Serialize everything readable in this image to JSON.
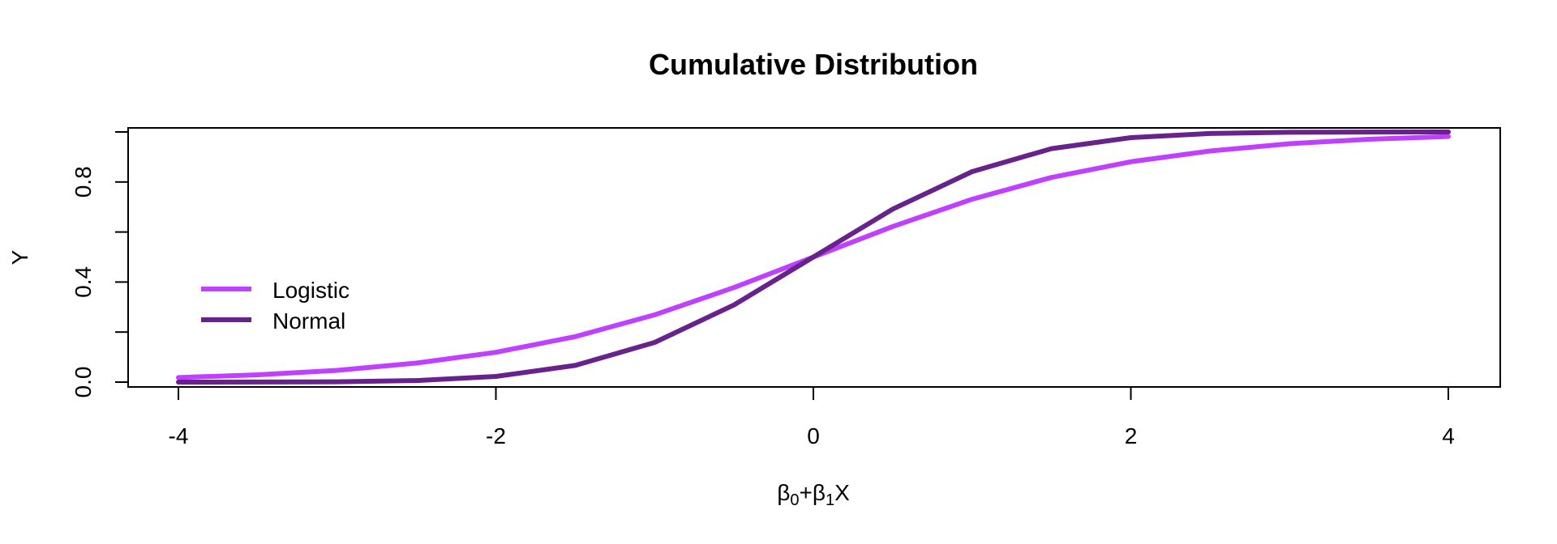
{
  "chart_data": {
    "type": "line",
    "title": "Cumulative Distribution",
    "xlabel": {
      "beta": "β",
      "sub0": "0",
      "plus": "+",
      "sub1": "1",
      "var": "X"
    },
    "ylabel": "Y",
    "xlim": [
      -4,
      4
    ],
    "ylim": [
      0,
      1
    ],
    "x_ticks": [
      -4,
      -2,
      0,
      2,
      4
    ],
    "x_tick_labels": [
      "-4",
      "-2",
      "0",
      "2",
      "4"
    ],
    "y_ticks": [
      0,
      0.2,
      0.4,
      0.6,
      0.8,
      1.0
    ],
    "y_tick_labels": [
      "0.0",
      "",
      "0.4",
      "",
      "0.8",
      ""
    ],
    "grid": false,
    "legend_position": "left-middle",
    "series": [
      {
        "name": "Logistic",
        "color": "#bf40ff",
        "x": [
          -4,
          -3.5,
          -3,
          -2.5,
          -2,
          -1.5,
          -1,
          -0.5,
          0,
          0.5,
          1,
          1.5,
          2,
          2.5,
          3,
          3.5,
          4
        ],
        "y": [
          0.018,
          0.029,
          0.047,
          0.076,
          0.119,
          0.182,
          0.269,
          0.378,
          0.5,
          0.622,
          0.731,
          0.818,
          0.881,
          0.924,
          0.953,
          0.971,
          0.982
        ]
      },
      {
        "name": "Normal",
        "color": "#68228b",
        "x": [
          -4,
          -3.5,
          -3,
          -2.5,
          -2,
          -1.5,
          -1,
          -0.5,
          0,
          0.5,
          1,
          1.5,
          2,
          2.5,
          3,
          3.5,
          4
        ],
        "y": [
          0.0,
          0.0002,
          0.0013,
          0.0062,
          0.0228,
          0.0668,
          0.1587,
          0.3085,
          0.5,
          0.6915,
          0.8413,
          0.9332,
          0.9772,
          0.9938,
          0.9987,
          0.9998,
          1.0
        ]
      }
    ]
  }
}
